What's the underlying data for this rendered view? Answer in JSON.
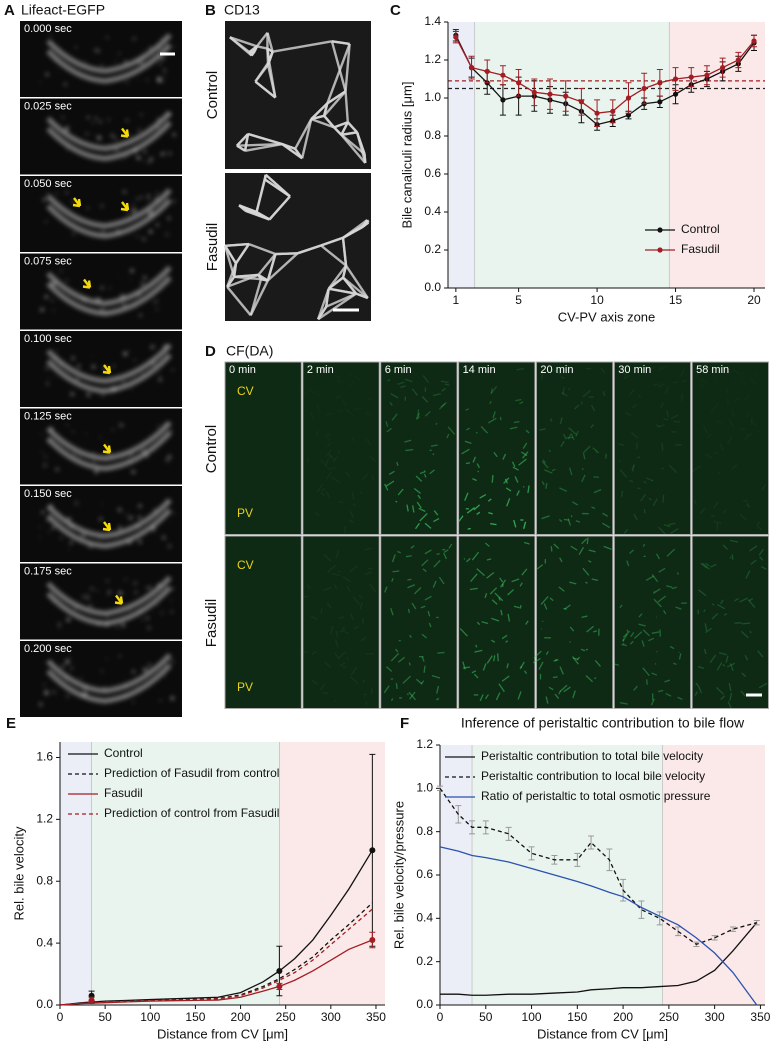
{
  "panels": {
    "A": {
      "letter": "A",
      "title": "Lifeact-EGFP",
      "times": [
        "0.000 sec",
        "0.025 sec",
        "0.050 sec",
        "0.075 sec",
        "0.100 sec",
        "0.125 sec",
        "0.150 sec",
        "0.175 sec",
        "0.200 sec"
      ]
    },
    "B": {
      "letter": "B",
      "title": "CD13",
      "rows": [
        "Control",
        "Fasudil"
      ]
    },
    "D": {
      "letter": "D",
      "title": "CF(DA)",
      "columns": [
        "0 min",
        "2 min",
        "6 min",
        "14 min",
        "20 min",
        "30 min",
        "58 min"
      ],
      "rows": [
        {
          "label": "Control",
          "top": "CV",
          "bottom": "PV"
        },
        {
          "label": "Fasudil",
          "top": "CV",
          "bottom": "PV"
        }
      ]
    }
  },
  "chart_data": [
    {
      "type": "line",
      "label": "C",
      "xlabel": "CV-PV axis zone",
      "ylabel": "Bile canaliculi radius [μm]",
      "x": [
        1,
        2,
        3,
        4,
        5,
        6,
        7,
        8,
        9,
        10,
        11,
        12,
        13,
        14,
        15,
        16,
        17,
        18,
        19,
        20
      ],
      "xlim": [
        0.5,
        20.7
      ],
      "xticks": [
        1,
        5,
        10,
        15,
        20
      ],
      "ylim": [
        0,
        1.4
      ],
      "yticks": [
        {
          "value": 0,
          "label": "0.0"
        },
        0.2,
        0.4,
        0.6,
        0.8,
        {
          "value": 1,
          "label": "1.0"
        },
        1.2,
        1.4
      ],
      "legend": "lower right",
      "marker": "circle",
      "regions": [
        {
          "from": 0.5,
          "to": 2.2,
          "color": "#eceef7"
        },
        {
          "from": 2.2,
          "to": 14.6,
          "color": "#eaf4ee"
        },
        {
          "from": 14.6,
          "to": 20.7,
          "color": "#fbe9e9"
        }
      ],
      "reference_lines": [
        {
          "value": 1.05,
          "color": "#222222"
        },
        {
          "value": 1.09,
          "color": "#a31d24"
        }
      ],
      "series": [
        {
          "name": "Control",
          "color": "#111111",
          "values": [
            1.33,
            1.16,
            1.08,
            0.99,
            1.01,
            1.01,
            0.99,
            0.97,
            0.93,
            0.86,
            0.88,
            0.91,
            0.97,
            0.98,
            1.02,
            1.07,
            1.1,
            1.14,
            1.18,
            1.29
          ],
          "errors": [
            0.03,
            0.05,
            0.06,
            0.08,
            0.1,
            0.08,
            0.07,
            0.06,
            0.06,
            0.03,
            0.03,
            0.02,
            0.03,
            0.03,
            0.05,
            0.04,
            0.04,
            0.05,
            0.04,
            0.04
          ]
        },
        {
          "name": "Fasudil",
          "color": "#a31d24",
          "values": [
            1.32,
            1.16,
            1.14,
            1.12,
            1.08,
            1.03,
            1.02,
            1.01,
            0.98,
            0.92,
            0.93,
            1.0,
            1.05,
            1.08,
            1.1,
            1.11,
            1.12,
            1.16,
            1.2,
            1.3
          ],
          "errors": [
            0.03,
            0.06,
            0.06,
            0.05,
            0.07,
            0.07,
            0.08,
            0.08,
            0.07,
            0.07,
            0.06,
            0.08,
            0.08,
            0.07,
            0.06,
            0.05,
            0.05,
            0.05,
            0.04,
            0.03
          ]
        }
      ]
    },
    {
      "type": "line",
      "label": "E",
      "xlabel": "Distance from CV [μm]",
      "ylabel": "Rel. bile velocity",
      "x": [
        0,
        25,
        50,
        75,
        100,
        125,
        150,
        175,
        200,
        225,
        243,
        260,
        280,
        300,
        320,
        346
      ],
      "xlim": [
        0,
        360
      ],
      "xticks": [
        0,
        50,
        100,
        150,
        200,
        250,
        300,
        350
      ],
      "ylim": [
        0,
        1.7
      ],
      "yticks": [
        {
          "value": 0,
          "label": "0.0"
        },
        0.4,
        0.8,
        1.2,
        1.6
      ],
      "legend": "upper left",
      "regions": [
        {
          "from": 0,
          "to": 35,
          "color": "#eceef7"
        },
        {
          "from": 35,
          "to": 243,
          "color": "#eaf4ee"
        },
        {
          "from": 243,
          "to": 360,
          "color": "#fbe9e9"
        }
      ],
      "series": [
        {
          "name": "Control",
          "color": "#111111",
          "dashed": false,
          "values": [
            0,
            0.015,
            0.025,
            0.03,
            0.035,
            0.04,
            0.045,
            0.05,
            0.08,
            0.15,
            0.22,
            0.3,
            0.42,
            0.58,
            0.75,
            1.0
          ],
          "points": {
            "x": [
              35,
              243,
              346
            ],
            "values": [
              0.06,
              0.22,
              1.0
            ],
            "errors": [
              0.03,
              0.16,
              0.62
            ]
          }
        },
        {
          "name": "Prediction of Fasudil from control",
          "color": "#111111",
          "dashed": true,
          "values": [
            0,
            0.012,
            0.02,
            0.025,
            0.03,
            0.034,
            0.038,
            0.042,
            0.065,
            0.12,
            0.17,
            0.23,
            0.31,
            0.42,
            0.52,
            0.66
          ]
        },
        {
          "name": "Fasudil",
          "color": "#a31d24",
          "dashed": false,
          "values": [
            0,
            0.01,
            0.015,
            0.02,
            0.025,
            0.028,
            0.03,
            0.032,
            0.05,
            0.09,
            0.12,
            0.16,
            0.22,
            0.29,
            0.36,
            0.42
          ],
          "points": {
            "x": [
              35,
              243,
              346
            ],
            "values": [
              0.03,
              0.12,
              0.42
            ],
            "errors": [
              0.02,
              0.02,
              0.05
            ]
          }
        },
        {
          "name": "Prediction of control from Fasudil",
          "color": "#a31d24",
          "dashed": true,
          "values": [
            0,
            0.012,
            0.02,
            0.024,
            0.028,
            0.032,
            0.036,
            0.04,
            0.06,
            0.11,
            0.16,
            0.21,
            0.29,
            0.39,
            0.49,
            0.62
          ]
        }
      ]
    },
    {
      "type": "line",
      "label": "F",
      "title": "Inference of peristaltic contribution to bile flow",
      "xlabel": "Distance from CV [μm]",
      "ylabel": "Rel. bile velocity/pressure",
      "x": [
        0,
        20,
        35,
        50,
        75,
        100,
        125,
        150,
        165,
        185,
        200,
        220,
        240,
        260,
        280,
        300,
        320,
        346
      ],
      "xlim": [
        0,
        355
      ],
      "xticks": [
        0,
        50,
        100,
        150,
        200,
        250,
        300,
        350
      ],
      "ylim": [
        0,
        1.2
      ],
      "yticks": [
        {
          "value": 0,
          "label": "0.0"
        },
        0.2,
        0.4,
        0.6,
        0.8,
        {
          "value": 1,
          "label": "1.0"
        },
        1.2
      ],
      "legend": "upper right",
      "regions": [
        {
          "from": 0,
          "to": 35,
          "color": "#eceef7"
        },
        {
          "from": 35,
          "to": 243,
          "color": "#eaf4ee"
        },
        {
          "from": 243,
          "to": 355,
          "color": "#fbe9e9"
        }
      ],
      "series": [
        {
          "name": "Peristaltic contribution to total bile velocity",
          "color": "#111111",
          "dashed": false,
          "values": [
            0.05,
            0.05,
            0.045,
            0.045,
            0.05,
            0.05,
            0.055,
            0.06,
            0.07,
            0.075,
            0.08,
            0.08,
            0.085,
            0.09,
            0.11,
            0.16,
            0.25,
            0.38
          ]
        },
        {
          "name": "Peristaltic contribution to local bile velocity",
          "color": "#111111",
          "dashed": true,
          "values": [
            1.0,
            0.88,
            0.82,
            0.82,
            0.79,
            0.7,
            0.67,
            0.67,
            0.75,
            0.67,
            0.53,
            0.44,
            0.4,
            0.34,
            0.28,
            0.31,
            0.35,
            0.38
          ],
          "errors": [
            0.01,
            0.04,
            0.03,
            0.03,
            0.03,
            0.03,
            0.02,
            0.03,
            0.03,
            0.05,
            0.05,
            0.04,
            0.03,
            0.02,
            0.01,
            0.01,
            0.01,
            0.01
          ]
        },
        {
          "name": "Ratio of peristaltic to total osmotic pressure",
          "color": "#2a52b0",
          "dashed": false,
          "values": [
            0.73,
            0.71,
            0.69,
            0.68,
            0.66,
            0.63,
            0.6,
            0.57,
            0.55,
            0.52,
            0.5,
            0.45,
            0.41,
            0.37,
            0.31,
            0.24,
            0.15,
            0.0
          ]
        }
      ]
    }
  ]
}
